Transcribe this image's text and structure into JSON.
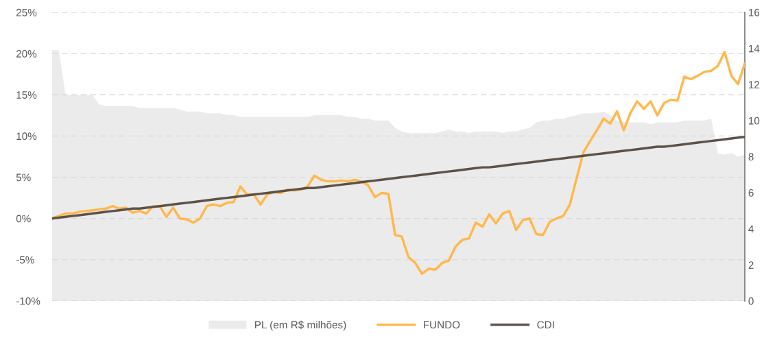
{
  "chart_data": {
    "type": "line",
    "categories": [
      null,
      null,
      null,
      null,
      null,
      null,
      null,
      null,
      null,
      null,
      null,
      null,
      null,
      null,
      null,
      null,
      null,
      null,
      null,
      null,
      null,
      null,
      null,
      null,
      null,
      null,
      null,
      null,
      null,
      null,
      null,
      null,
      null,
      null,
      null,
      null,
      null,
      null,
      null,
      null,
      null,
      null,
      null,
      null,
      null,
      null,
      null,
      null,
      null,
      null,
      null,
      null,
      null,
      null,
      null,
      null,
      null,
      null,
      null,
      null,
      null,
      null,
      null,
      null,
      null,
      null,
      null,
      null,
      null,
      null,
      null,
      null,
      null,
      null,
      null,
      null,
      null,
      null,
      null,
      null,
      null,
      null,
      null,
      null,
      null,
      null,
      null,
      null,
      null,
      null,
      null,
      null,
      null,
      null,
      null,
      null,
      null,
      null,
      null,
      null,
      null,
      null,
      null,
      null
    ],
    "series": [
      {
        "name": "PL (em R$ milhões)",
        "type": "area",
        "axis": "y2",
        "color": "#ebebeb",
        "values": [
          13.9,
          13.9,
          11.4,
          11.4,
          11.4,
          11.4,
          11.4,
          10.9,
          10.8,
          10.8,
          10.8,
          10.8,
          10.8,
          10.7,
          10.7,
          10.7,
          10.7,
          10.7,
          10.7,
          10.6,
          10.5,
          10.5,
          10.5,
          10.4,
          10.4,
          10.4,
          10.3,
          10.3,
          10.2,
          10.2,
          10.2,
          10.2,
          10.2,
          10.2,
          10.2,
          10.2,
          10.2,
          10.2,
          10.2,
          10.3,
          10.3,
          10.3,
          10.3,
          10.3,
          10.2,
          10.2,
          10.1,
          10.1,
          10.0,
          10.0,
          10.0,
          9.6,
          9.4,
          9.3,
          9.3,
          9.3,
          9.3,
          9.3,
          9.4,
          9.5,
          9.4,
          9.4,
          9.3,
          9.4,
          9.4,
          9.4,
          9.4,
          9.3,
          9.4,
          9.4,
          9.5,
          9.6,
          9.9,
          10.0,
          10.0,
          10.1,
          10.1,
          10.2,
          10.3,
          10.4,
          10.4,
          10.4,
          10.5,
          10.3,
          10.0,
          9.9,
          9.9,
          9.9,
          9.9,
          9.8,
          9.9,
          9.9,
          9.9,
          9.9,
          10.0,
          10.0,
          10.0,
          10.0,
          10.1,
          8.2,
          8.1,
          8.2,
          8.0,
          8.1
        ]
      },
      {
        "name": "FUNDO",
        "color": "#ffb84d",
        "values": [
          0.0,
          0.3,
          0.6,
          0.6,
          0.8,
          0.9,
          1.0,
          1.1,
          1.2,
          1.5,
          1.2,
          1.3,
          0.7,
          0.9,
          0.6,
          1.5,
          1.5,
          0.2,
          1.3,
          0.0,
          -0.1,
          -0.5,
          0.0,
          1.5,
          1.7,
          1.5,
          1.9,
          2.0,
          3.9,
          2.9,
          2.9,
          1.7,
          2.9,
          3.2,
          3.1,
          3.5,
          3.4,
          3.5,
          3.9,
          5.2,
          4.7,
          4.5,
          4.5,
          4.6,
          4.5,
          4.7,
          4.5,
          4.0,
          2.6,
          3.1,
          3.0,
          -2.0,
          -2.2,
          -4.7,
          -5.4,
          -6.7,
          -6.1,
          -6.2,
          -5.4,
          -5.1,
          -3.4,
          -2.6,
          -2.4,
          -0.5,
          -1.0,
          0.5,
          -0.6,
          0.6,
          0.9,
          -1.4,
          -0.2,
          0.0,
          -1.9,
          -2.0,
          -0.4,
          0.0,
          0.3,
          1.7,
          4.9,
          8.0,
          9.4,
          10.7,
          12.1,
          11.5,
          13.0,
          10.7,
          12.8,
          14.2,
          13.3,
          14.2,
          12.5,
          14.0,
          14.4,
          14.3,
          17.2,
          16.9,
          17.3,
          17.8,
          17.9,
          18.5,
          20.2,
          17.3,
          16.3,
          18.8
        ]
      },
      {
        "name": "CDI",
        "color": "#5c5248",
        "values": [
          0.0,
          0.1,
          0.2,
          0.3,
          0.4,
          0.5,
          0.6,
          0.7,
          0.8,
          0.9,
          1.0,
          1.1,
          1.2,
          1.2,
          1.3,
          1.4,
          1.5,
          1.6,
          1.7,
          1.8,
          1.9,
          2.0,
          2.1,
          2.2,
          2.3,
          2.4,
          2.5,
          2.6,
          2.7,
          2.8,
          2.9,
          3.0,
          3.1,
          3.2,
          3.3,
          3.4,
          3.5,
          3.6,
          3.7,
          3.7,
          3.8,
          3.9,
          4.0,
          4.1,
          4.2,
          4.3,
          4.4,
          4.5,
          4.6,
          4.7,
          4.8,
          4.9,
          5.0,
          5.1,
          5.2,
          5.3,
          5.4,
          5.5,
          5.6,
          5.7,
          5.8,
          5.9,
          6.0,
          6.1,
          6.2,
          6.2,
          6.3,
          6.4,
          6.5,
          6.6,
          6.7,
          6.8,
          6.9,
          7.0,
          7.1,
          7.2,
          7.3,
          7.4,
          7.5,
          7.6,
          7.7,
          7.8,
          7.9,
          8.0,
          8.1,
          8.2,
          8.3,
          8.4,
          8.5,
          8.6,
          8.7,
          8.7,
          8.8,
          8.9,
          9.0,
          9.1,
          9.2,
          9.3,
          9.4,
          9.5,
          9.6,
          9.7,
          9.8,
          9.9
        ]
      }
    ],
    "ylim": [
      -10,
      25
    ],
    "yticks": [
      {
        "value": -10,
        "label": "-10%"
      },
      {
        "value": -5,
        "label": "-5%"
      },
      {
        "value": 0,
        "label": "0%"
      },
      {
        "value": 5,
        "label": "5%"
      },
      {
        "value": 10,
        "label": "10%"
      },
      {
        "value": 15,
        "label": "15%"
      },
      {
        "value": 20,
        "label": "20%"
      },
      {
        "value": 25,
        "label": "25%"
      }
    ],
    "y2lim": [
      0,
      16
    ],
    "y2ticks": [
      0,
      2,
      4,
      6,
      8,
      10,
      12,
      14,
      16
    ],
    "grid": "y",
    "legend": "bottom",
    "marker": "none",
    "line_style": "solid"
  }
}
